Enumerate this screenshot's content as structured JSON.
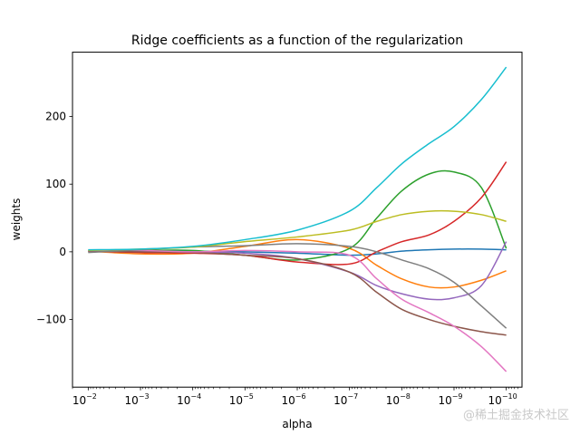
{
  "chart_data": {
    "type": "line",
    "title": "Ridge coefficients as a function of the regularization",
    "xlabel": "alpha",
    "ylabel": "weights",
    "x_scale": "log",
    "x_direction": "reversed",
    "xlim": [
      0.02,
      5e-11
    ],
    "ylim": [
      -200,
      295
    ],
    "x_ticks": [
      {
        "value": 0.01,
        "label": "10",
        "exp": "−2"
      },
      {
        "value": 0.001,
        "label": "10",
        "exp": "−3"
      },
      {
        "value": 0.0001,
        "label": "10",
        "exp": "−4"
      },
      {
        "value": 1e-05,
        "label": "10",
        "exp": "−5"
      },
      {
        "value": 1e-06,
        "label": "10",
        "exp": "−6"
      },
      {
        "value": 1e-07,
        "label": "10",
        "exp": "−7"
      },
      {
        "value": 1e-08,
        "label": "10",
        "exp": "−8"
      },
      {
        "value": 1e-09,
        "label": "10",
        "exp": "−9"
      },
      {
        "value": 1e-10,
        "label": "10",
        "exp": "−10"
      }
    ],
    "y_ticks": [
      {
        "value": 200,
        "label": "200"
      },
      {
        "value": 100,
        "label": "100"
      },
      {
        "value": 0,
        "label": "0"
      },
      {
        "value": -100,
        "label": "−100"
      }
    ],
    "grid": false,
    "x": [
      0.01,
      0.001,
      0.0001,
      1e-05,
      1e-06,
      1e-07,
      3e-08,
      1e-08,
      3e-09,
      1e-09,
      3e-10,
      1e-10
    ],
    "series": [
      {
        "color": "#1f77b4",
        "values": [
          0,
          1,
          1,
          0,
          -2,
          -5,
          -3,
          1,
          3,
          4,
          4,
          3
        ]
      },
      {
        "color": "#ff7f0e",
        "values": [
          1,
          -3,
          -2,
          8,
          18,
          5,
          -20,
          -40,
          -52,
          -52,
          -42,
          -28
        ]
      },
      {
        "color": "#2ca02c",
        "values": [
          2,
          2,
          2,
          -5,
          -12,
          5,
          50,
          90,
          115,
          118,
          95,
          5
        ]
      },
      {
        "color": "#d62728",
        "values": [
          1,
          -1,
          -2,
          -5,
          -15,
          -18,
          0,
          15,
          25,
          45,
          80,
          133
        ]
      },
      {
        "color": "#9467bd",
        "values": [
          0,
          1,
          0,
          -2,
          -10,
          -30,
          -50,
          -62,
          -70,
          -68,
          -50,
          15
        ]
      },
      {
        "color": "#8c564b",
        "values": [
          1,
          0,
          -1,
          -5,
          -10,
          -30,
          -60,
          -85,
          -100,
          -110,
          -118,
          -123
        ]
      },
      {
        "color": "#e377c2",
        "values": [
          2,
          2,
          0,
          2,
          0,
          -5,
          -40,
          -70,
          -90,
          -110,
          -140,
          -177
        ]
      },
      {
        "color": "#7f7f7f",
        "values": [
          -1,
          3,
          7,
          9,
          12,
          8,
          0,
          -12,
          -25,
          -45,
          -80,
          -113
        ]
      },
      {
        "color": "#bcbd22",
        "values": [
          2,
          4,
          7,
          15,
          22,
          32,
          45,
          55,
          60,
          60,
          55,
          45
        ]
      },
      {
        "color": "#17becf",
        "values": [
          3,
          4,
          8,
          18,
          32,
          60,
          95,
          130,
          160,
          185,
          225,
          273
        ]
      }
    ]
  },
  "watermark": "@稀土掘金技术社区"
}
